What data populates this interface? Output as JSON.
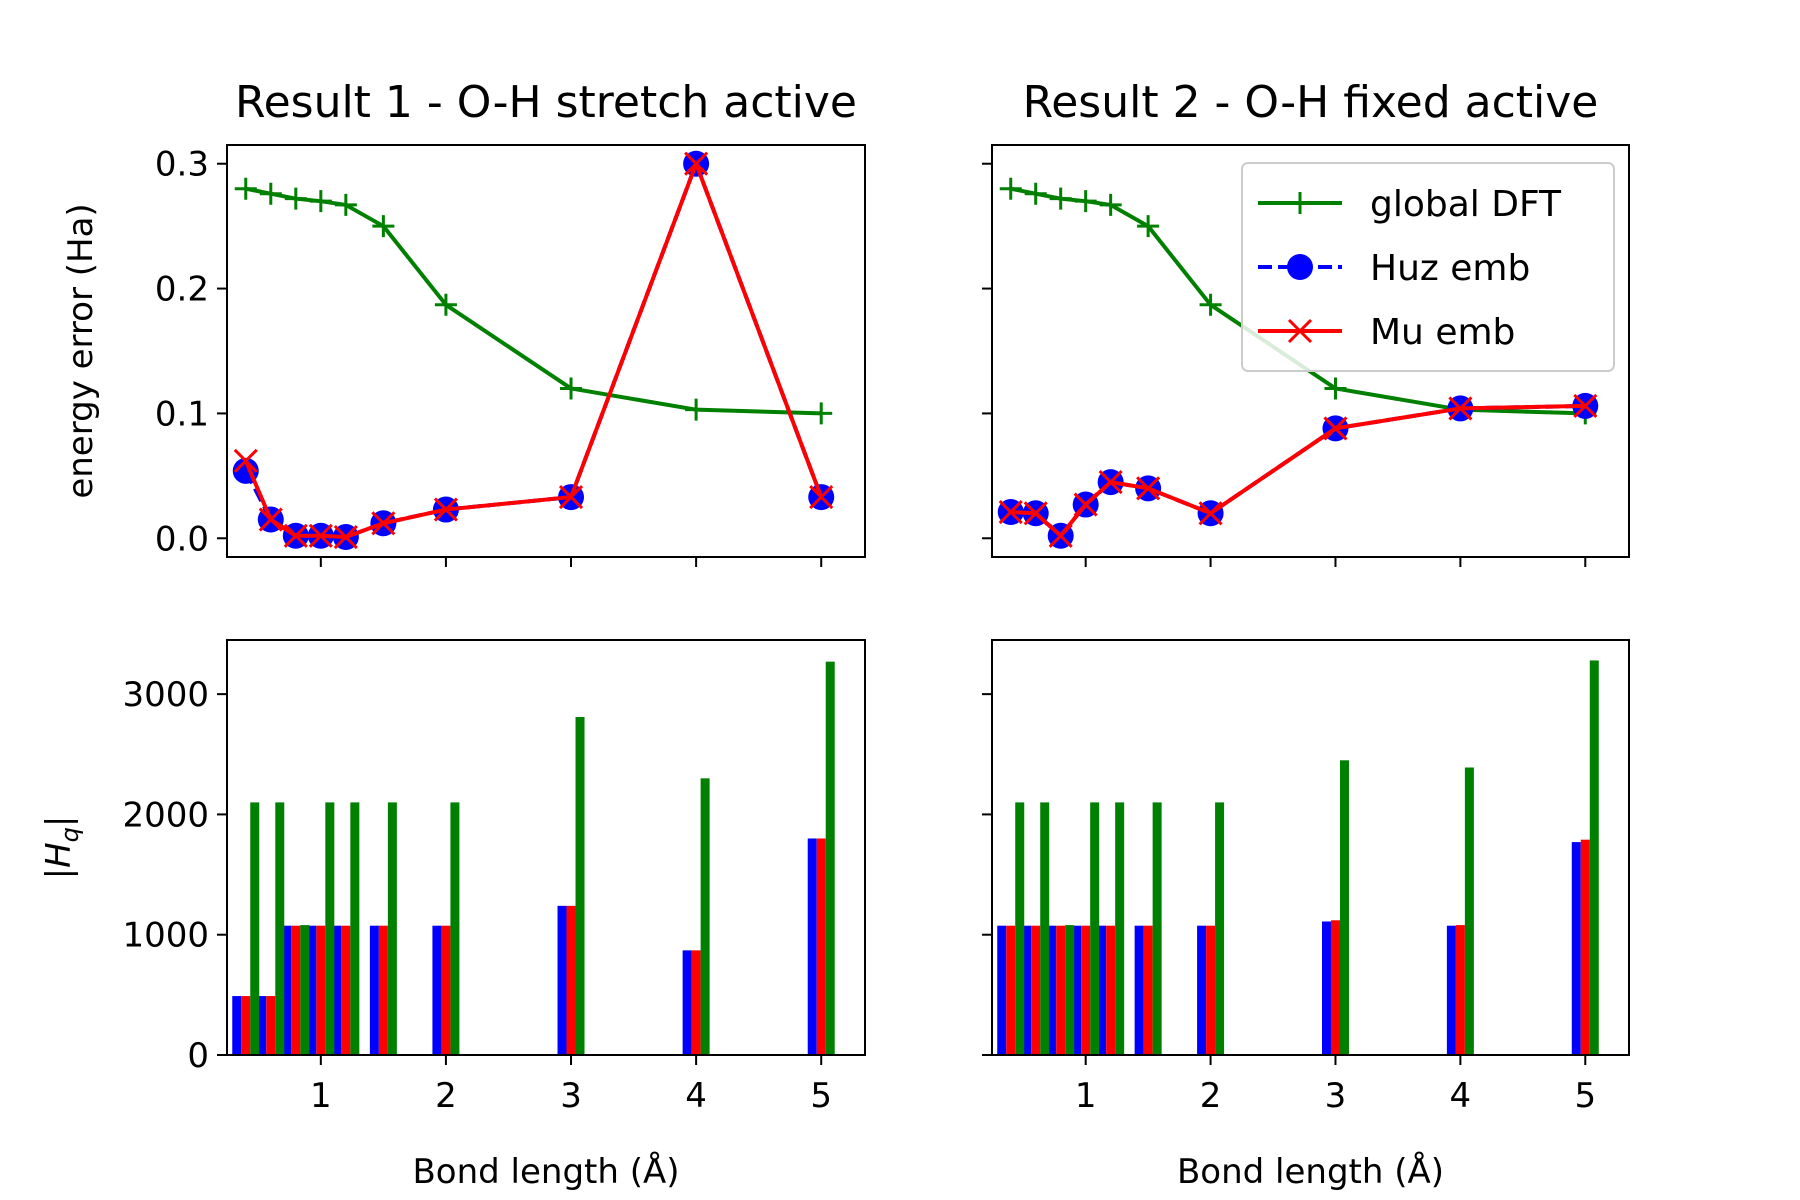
{
  "chart_data": [
    {
      "type": "line",
      "panel": "top-left",
      "title": "Result 1 - O-H stretch active",
      "xlabel": "",
      "ylabel": "energy error (Ha)",
      "xlim": [
        0.25,
        5.35
      ],
      "ylim": [
        -0.015,
        0.315
      ],
      "xticks": [
        1,
        2,
        3,
        4,
        5
      ],
      "xtick_labels_visible": false,
      "yticks": [
        0.0,
        0.1,
        0.2,
        0.3
      ],
      "ytick_labels": [
        "0.0",
        "0.1",
        "0.2",
        "0.3"
      ],
      "x": [
        0.4,
        0.6,
        0.8,
        1.0,
        1.2,
        1.5,
        2.0,
        3.0,
        4.0,
        5.0
      ],
      "series": [
        {
          "name": "global DFT",
          "color": "#008000",
          "marker": "plus",
          "linestyle": "solid",
          "values": [
            0.28,
            0.276,
            0.272,
            0.27,
            0.267,
            0.25,
            0.187,
            0.12,
            0.103,
            0.1
          ]
        },
        {
          "name": "Huz emb",
          "color": "#0000ff",
          "marker": "circle",
          "linestyle": "dashed",
          "values": [
            0.054,
            0.015,
            0.002,
            0.002,
            0.001,
            0.012,
            0.023,
            0.033,
            0.3,
            0.033
          ]
        },
        {
          "name": "Mu emb",
          "color": "#ff0000",
          "marker": "x",
          "linestyle": "solid",
          "values": [
            0.062,
            0.015,
            0.002,
            0.002,
            0.001,
            0.012,
            0.023,
            0.033,
            0.3,
            0.033
          ]
        }
      ]
    },
    {
      "type": "line",
      "panel": "top-right",
      "title": "Result 2 - O-H fixed active",
      "xlabel": "",
      "ylabel": "",
      "xlim": [
        0.25,
        5.35
      ],
      "ylim": [
        -0.015,
        0.315
      ],
      "xticks": [
        1,
        2,
        3,
        4,
        5
      ],
      "xtick_labels_visible": false,
      "yticks": [
        0.0,
        0.1,
        0.2,
        0.3
      ],
      "ytick_labels_visible": false,
      "legend": {
        "position": "top-right",
        "entries": [
          "global DFT",
          "Huz emb",
          "Mu emb"
        ]
      },
      "x": [
        0.4,
        0.6,
        0.8,
        1.0,
        1.2,
        1.5,
        2.0,
        3.0,
        4.0,
        5.0
      ],
      "series": [
        {
          "name": "global DFT",
          "color": "#008000",
          "marker": "plus",
          "linestyle": "solid",
          "values": [
            0.28,
            0.276,
            0.272,
            0.27,
            0.267,
            0.25,
            0.187,
            0.12,
            0.103,
            0.1
          ]
        },
        {
          "name": "Huz emb",
          "color": "#0000ff",
          "marker": "circle",
          "linestyle": "dashed",
          "values": [
            0.021,
            0.02,
            0.002,
            0.027,
            0.045,
            0.04,
            0.02,
            0.088,
            0.104,
            0.106
          ]
        },
        {
          "name": "Mu emb",
          "color": "#ff0000",
          "marker": "x",
          "linestyle": "solid",
          "values": [
            0.021,
            0.02,
            0.002,
            0.027,
            0.045,
            0.04,
            0.02,
            0.088,
            0.104,
            0.106
          ]
        }
      ]
    },
    {
      "type": "bar",
      "panel": "bottom-left",
      "title": "",
      "xlabel": "Bond length (Å)",
      "ylabel": "|H_q|",
      "xlim": [
        0.25,
        5.35
      ],
      "ylim": [
        0,
        3450
      ],
      "xticks": [
        1,
        2,
        3,
        4,
        5
      ],
      "xtick_labels": [
        "1",
        "2",
        "3",
        "4",
        "5"
      ],
      "yticks": [
        0,
        1000,
        2000,
        3000
      ],
      "ytick_labels": [
        "0",
        "1000",
        "2000",
        "3000"
      ],
      "x": [
        0.4,
        0.6,
        0.8,
        1.0,
        1.2,
        1.5,
        2.0,
        3.0,
        4.0,
        5.0
      ],
      "series": [
        {
          "name": "",
          "color": "#0000ff",
          "values": [
            490,
            490,
            1075,
            1075,
            1075,
            1075,
            1075,
            1240,
            870,
            1800
          ]
        },
        {
          "name": "",
          "color": "#ff0000",
          "values": [
            490,
            490,
            1075,
            1075,
            1075,
            1075,
            1075,
            1240,
            870,
            1800
          ]
        },
        {
          "name": "",
          "color": "#008000",
          "values": [
            2100,
            2100,
            1080,
            2100,
            2100,
            2100,
            2100,
            2810,
            2300,
            3270
          ]
        }
      ]
    },
    {
      "type": "bar",
      "panel": "bottom-right",
      "title": "",
      "xlabel": "Bond length (Å)",
      "ylabel": "",
      "xlim": [
        0.25,
        5.35
      ],
      "ylim": [
        0,
        3450
      ],
      "xticks": [
        1,
        2,
        3,
        4,
        5
      ],
      "xtick_labels": [
        "1",
        "2",
        "3",
        "4",
        "5"
      ],
      "yticks": [
        0,
        1000,
        2000,
        3000
      ],
      "ytick_labels_visible": false,
      "x": [
        0.4,
        0.6,
        0.8,
        1.0,
        1.2,
        1.5,
        2.0,
        3.0,
        4.0,
        5.0
      ],
      "series": [
        {
          "name": "",
          "color": "#0000ff",
          "values": [
            1075,
            1075,
            1075,
            1075,
            1075,
            1075,
            1075,
            1110,
            1075,
            1770
          ]
        },
        {
          "name": "",
          "color": "#ff0000",
          "values": [
            1075,
            1075,
            1075,
            1075,
            1075,
            1075,
            1075,
            1120,
            1080,
            1790
          ]
        },
        {
          "name": "",
          "color": "#008000",
          "values": [
            2100,
            2100,
            1080,
            2100,
            2100,
            2100,
            2100,
            2450,
            2390,
            3280
          ]
        }
      ]
    }
  ]
}
